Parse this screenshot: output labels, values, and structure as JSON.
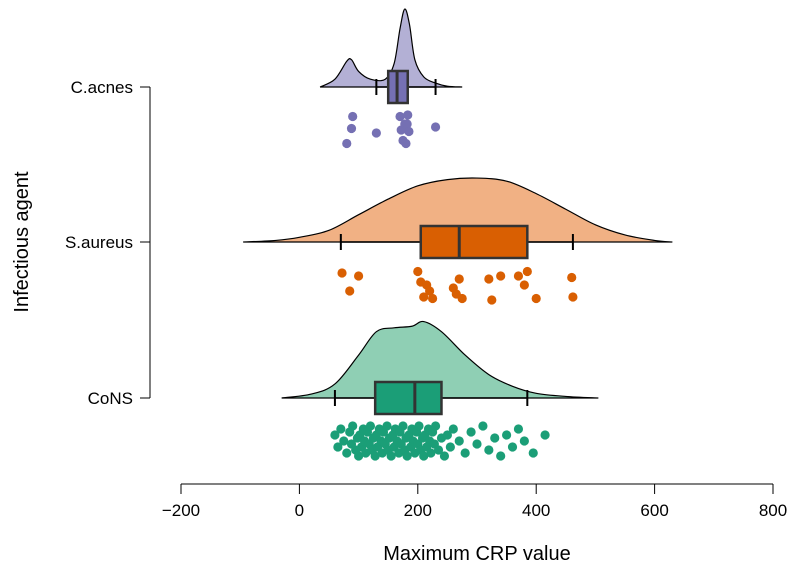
{
  "chart_data": {
    "type": "raincloud",
    "xlabel": "Maximum CRP value",
    "ylabel": "Infectious agent",
    "xlim": [
      -200,
      800
    ],
    "x_ticks": [
      -200,
      0,
      200,
      400,
      600,
      800
    ],
    "x_tick_labels": [
      "−200",
      "0",
      "200",
      "400",
      "600",
      "800"
    ],
    "grid": false,
    "legend": "none",
    "groups": [
      {
        "name": "C.acnes",
        "fill_color": "#b3b0d5",
        "box_color": "#7570b3",
        "box": {
          "whisker_low": 130,
          "q1": 150,
          "median": 165,
          "q3": 183,
          "whisker_high": 230
        },
        "density": [
          [
            35,
            0.0
          ],
          [
            60,
            0.1
          ],
          [
            80,
            0.33
          ],
          [
            88,
            0.35
          ],
          [
            100,
            0.2
          ],
          [
            120,
            0.1
          ],
          [
            145,
            0.1
          ],
          [
            160,
            0.3
          ],
          [
            170,
            0.75
          ],
          [
            178,
            1.0
          ],
          [
            186,
            0.8
          ],
          [
            195,
            0.35
          ],
          [
            210,
            0.13
          ],
          [
            230,
            0.05
          ],
          [
            250,
            0.01
          ],
          [
            275,
            0.0
          ]
        ],
        "points": [
          80,
          88,
          90,
          130,
          170,
          172,
          175,
          178,
          180,
          182,
          183,
          185,
          230
        ],
        "point_rows": [
          0.95,
          0.45,
          0.05,
          0.6,
          0.05,
          0.5,
          0.85,
          0.3,
          0.95,
          0.3,
          0.0,
          0.55,
          0.4
        ]
      },
      {
        "name": "S.aureus",
        "fill_color": "#f1b184",
        "box_color": "#d95f02",
        "box": {
          "whisker_low": 70,
          "q1": 205,
          "median": 270,
          "q3": 385,
          "whisker_high": 462
        },
        "density": [
          [
            -95,
            0.0
          ],
          [
            -40,
            0.02
          ],
          [
            0,
            0.06
          ],
          [
            50,
            0.15
          ],
          [
            100,
            0.35
          ],
          [
            150,
            0.55
          ],
          [
            200,
            0.72
          ],
          [
            250,
            0.8
          ],
          [
            300,
            0.82
          ],
          [
            350,
            0.78
          ],
          [
            400,
            0.62
          ],
          [
            450,
            0.42
          ],
          [
            500,
            0.22
          ],
          [
            550,
            0.09
          ],
          [
            600,
            0.02
          ],
          [
            630,
            0.0
          ]
        ],
        "points": [
          72,
          85,
          100,
          200,
          205,
          210,
          215,
          220,
          225,
          260,
          265,
          270,
          275,
          320,
          325,
          340,
          370,
          380,
          385,
          400,
          460,
          462
        ],
        "point_rows": [
          0.1,
          0.7,
          0.2,
          0.05,
          0.4,
          0.9,
          0.5,
          0.7,
          0.95,
          0.6,
          0.8,
          0.3,
          0.95,
          0.3,
          1.0,
          0.2,
          0.2,
          0.5,
          0.05,
          0.95,
          0.25,
          0.9
        ]
      },
      {
        "name": "CoNS",
        "fill_color": "#8fcfb4",
        "box_color": "#1b9e77",
        "box": {
          "whisker_low": 60,
          "q1": 128,
          "median": 195,
          "q3": 240,
          "whisker_high": 385
        },
        "density": [
          [
            -30,
            0.0
          ],
          [
            20,
            0.05
          ],
          [
            60,
            0.18
          ],
          [
            100,
            0.55
          ],
          [
            130,
            0.85
          ],
          [
            160,
            0.9
          ],
          [
            190,
            0.92
          ],
          [
            210,
            0.98
          ],
          [
            240,
            0.85
          ],
          [
            280,
            0.55
          ],
          [
            320,
            0.3
          ],
          [
            360,
            0.15
          ],
          [
            400,
            0.06
          ],
          [
            450,
            0.02
          ],
          [
            505,
            0.0
          ]
        ],
        "points": [
          60,
          65,
          70,
          75,
          80,
          85,
          88,
          90,
          95,
          98,
          100,
          102,
          105,
          108,
          110,
          112,
          115,
          118,
          120,
          122,
          125,
          128,
          130,
          132,
          135,
          138,
          140,
          142,
          145,
          148,
          150,
          152,
          155,
          158,
          160,
          162,
          165,
          168,
          170,
          172,
          175,
          178,
          180,
          182,
          185,
          188,
          190,
          192,
          195,
          198,
          200,
          202,
          205,
          208,
          210,
          212,
          215,
          218,
          220,
          222,
          225,
          228,
          230,
          235,
          240,
          245,
          250,
          255,
          260,
          270,
          280,
          290,
          300,
          310,
          320,
          330,
          340,
          350,
          360,
          370,
          380,
          395,
          415
        ],
        "point_rows": [
          0.3,
          0.7,
          0.1,
          0.5,
          0.9,
          0.2,
          0.6,
          0.0,
          0.8,
          0.4,
          1.0,
          0.3,
          0.7,
          0.1,
          0.5,
          0.9,
          0.2,
          0.6,
          0.0,
          0.8,
          0.4,
          1.0,
          0.3,
          0.7,
          0.1,
          0.5,
          0.9,
          0.2,
          0.6,
          0.0,
          0.8,
          0.4,
          1.0,
          0.3,
          0.7,
          0.1,
          0.5,
          0.9,
          0.2,
          0.6,
          0.0,
          0.8,
          0.4,
          1.0,
          0.3,
          0.7,
          0.1,
          0.5,
          0.9,
          0.2,
          0.6,
          0.0,
          0.8,
          0.4,
          1.0,
          0.3,
          0.7,
          0.1,
          0.5,
          0.9,
          0.2,
          0.6,
          0.0,
          0.8,
          0.4,
          1.0,
          0.3,
          0.7,
          0.1,
          0.5,
          0.9,
          0.2,
          0.6,
          0.0,
          0.8,
          0.4,
          1.0,
          0.3,
          0.7,
          0.1,
          0.5,
          0.9,
          0.3
        ]
      }
    ]
  }
}
